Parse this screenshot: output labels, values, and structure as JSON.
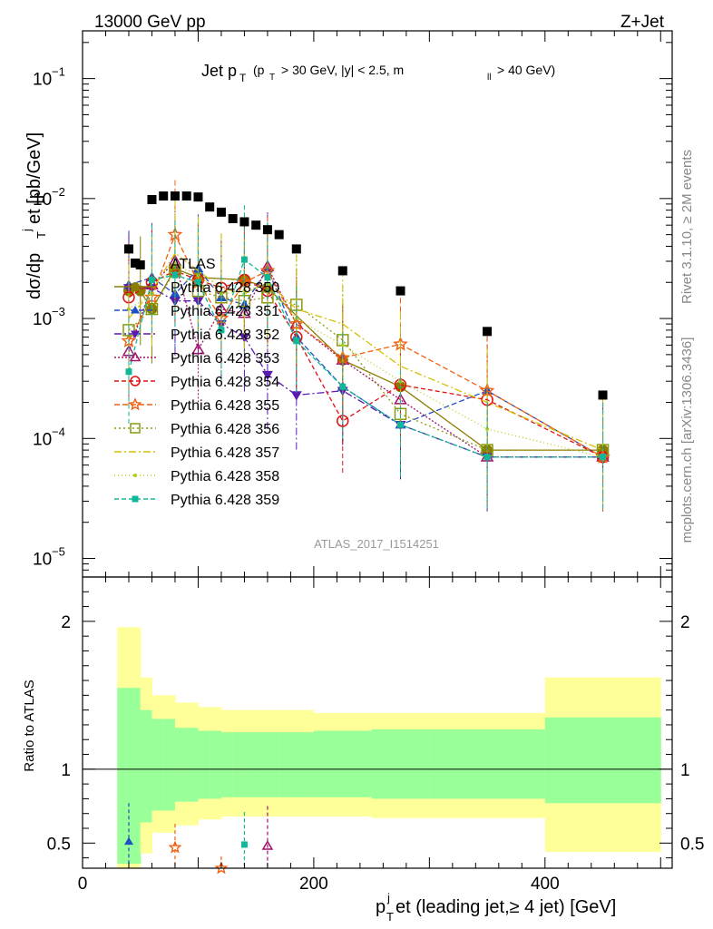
{
  "header": {
    "left": "13000 GeV pp",
    "right": "Z+Jet"
  },
  "side": {
    "rivet": "Rivet 3.1.10, ≥ 2M events",
    "mcplots": "mcplots.cern.ch [arXiv:1306.3436]"
  },
  "chart_data": {
    "type": "scatter",
    "title": "Jet p_T (p_T > 30 GeV, |y| < 2.5, m_ll > 40 GeV)",
    "title_main": "Jet p",
    "title_sub": "T",
    "title_cut_a": "(p",
    "title_cut_b": "T",
    "title_cut_c": "> 30 GeV, |y| < 2.5, m",
    "title_cut_d": "ll",
    "title_cut_e": "> 40 GeV)",
    "analysis_id": "ATLAS_2017_I1514251",
    "ylabel": "dσ/dp_T^j et [pb/GeV]",
    "ylabel_parts": [
      "dσ/dp",
      "T",
      "j",
      "et [pb/GeV]"
    ],
    "ratio_ylabel": "Ratio to ATLAS",
    "xlabel": "p_T^j et (leading jet,≥ 4 jet) [GeV]",
    "xlabel_parts": [
      "p",
      "T",
      "j",
      "et (leading jet,≥ 4 jet) [GeV]"
    ],
    "xlim": [
      0,
      510
    ],
    "ylim": [
      7e-06,
      0.25
    ],
    "yscale": "log",
    "ratio_ylim": [
      0.33,
      2.3
    ],
    "x_ticks": [
      "0",
      "200",
      "400"
    ],
    "y_ticks": [
      "10^-5",
      "10^-4",
      "10^-3",
      "10^-2",
      "10^-1"
    ],
    "ratio_ticks": [
      "0.5",
      "1",
      "2"
    ],
    "legend_position": "middle-left",
    "data": {
      "name": "ATLAS",
      "x": [
        40,
        50,
        60,
        70,
        80,
        90,
        100,
        110,
        120,
        130,
        140,
        150,
        160,
        170,
        185,
        225,
        275,
        350,
        450
      ],
      "values": [
        0.0038,
        0.0028,
        0.0098,
        0.0105,
        0.0105,
        0.0105,
        0.0103,
        0.0085,
        0.0077,
        0.0068,
        0.0064,
        0.006,
        0.0055,
        0.005,
        0.0038,
        0.0025,
        0.0017,
        0.00078,
        0.00023
      ]
    },
    "bins": {
      "edges": [
        30,
        40,
        50,
        60,
        70,
        80,
        90,
        100,
        110,
        120,
        130,
        140,
        150,
        160,
        170,
        200,
        250,
        300,
        400,
        500
      ],
      "green_lo": [
        0.36,
        0.36,
        0.64,
        0.72,
        0.72,
        0.78,
        0.78,
        0.8,
        0.8,
        0.81,
        0.81,
        0.81,
        0.81,
        0.81,
        0.81,
        0.81,
        0.8,
        0.8,
        0.77
      ],
      "green_hi": [
        1.55,
        1.55,
        1.4,
        1.34,
        1.34,
        1.28,
        1.28,
        1.26,
        1.26,
        1.25,
        1.25,
        1.25,
        1.25,
        1.25,
        1.25,
        1.26,
        1.27,
        1.27,
        1.35
      ],
      "yellow_lo": [
        0.33,
        0.33,
        0.43,
        0.57,
        0.57,
        0.62,
        0.62,
        0.66,
        0.66,
        0.68,
        0.68,
        0.68,
        0.68,
        0.68,
        0.68,
        0.68,
        0.67,
        0.67,
        0.44
      ],
      "yellow_hi": [
        1.96,
        1.96,
        1.62,
        1.5,
        1.5,
        1.45,
        1.45,
        1.42,
        1.42,
        1.4,
        1.4,
        1.4,
        1.4,
        1.4,
        1.4,
        1.38,
        1.38,
        1.38,
        1.62
      ]
    },
    "series": [
      {
        "name": "Pythia 6.428 350",
        "color": "#8b7d00",
        "marker": "circle-filled",
        "dash": "",
        "x": [
          40,
          50,
          60,
          80,
          100,
          140,
          160,
          225,
          275,
          350,
          450
        ],
        "values": [
          0.0017,
          0.0017,
          0.0012,
          0.0026,
          0.0022,
          0.0021,
          0.0018,
          0.00045,
          0.00027,
          8e-05,
          8e-05
        ]
      },
      {
        "name": "Pythia 6.428 351",
        "color": "#1f4fc4",
        "marker": "triangle-up-filled",
        "dash": "6,3",
        "x": [
          40,
          60,
          80,
          100,
          120,
          140,
          160,
          185,
          225,
          275,
          350,
          450
        ],
        "values": [
          0.0019,
          0.0022,
          0.0016,
          0.0026,
          0.0015,
          0.0013,
          0.0026,
          0.0007,
          0.00027,
          0.00013,
          0.00025,
          7e-05
        ]
      },
      {
        "name": "Pythia 6.428 352",
        "color": "#5a1ab0",
        "marker": "triangle-down-filled",
        "dash": "8,3,2,3",
        "x": [
          40,
          60,
          80,
          100,
          120,
          140,
          160,
          185,
          225,
          275,
          350,
          450
        ],
        "values": [
          0.0018,
          0.0018,
          0.0014,
          0.0014,
          0.0009,
          0.0007,
          0.00034,
          0.00023,
          0.00025,
          0.00013,
          7e-05,
          7e-05
        ]
      },
      {
        "name": "Pythia 6.428 353",
        "color": "#a0126e",
        "marker": "triangle-up-open",
        "dash": "2,2",
        "x": [
          40,
          60,
          80,
          100,
          120,
          140,
          160,
          185,
          225,
          275,
          350,
          450
        ],
        "values": [
          0.00053,
          0.0019,
          0.003,
          0.00055,
          0.0012,
          0.0011,
          0.0027,
          0.0009,
          0.00045,
          0.00021,
          7e-05,
          7e-05
        ]
      },
      {
        "name": "Pythia 6.428 354",
        "color": "#e01010",
        "marker": "circle-open",
        "dash": "5,3",
        "x": [
          40,
          60,
          80,
          100,
          120,
          140,
          160,
          185,
          225,
          275,
          350,
          450
        ],
        "values": [
          0.0015,
          0.002,
          0.0025,
          0.0021,
          0.0018,
          0.0021,
          0.0017,
          0.0007,
          0.00014,
          0.00028,
          0.00021,
          7e-05
        ]
      },
      {
        "name": "Pythia 6.428 355",
        "color": "#f06010",
        "marker": "star",
        "dash": "6,3",
        "x": [
          40,
          60,
          80,
          100,
          120,
          140,
          160,
          185,
          225,
          275,
          350,
          450
        ],
        "values": [
          0.00065,
          0.0015,
          0.005,
          0.002,
          0.001,
          0.002,
          0.0025,
          0.0009,
          0.00047,
          0.00061,
          0.00025,
          7e-05
        ]
      },
      {
        "name": "Pythia 6.428 356",
        "color": "#8a9a10",
        "marker": "square-open",
        "dash": "2,3",
        "x": [
          40,
          60,
          80,
          100,
          120,
          140,
          160,
          185,
          225,
          275,
          350,
          450
        ],
        "values": [
          0.0008,
          0.0012,
          0.0025,
          0.0017,
          0.0015,
          0.0014,
          0.0015,
          0.0013,
          0.00066,
          0.00016,
          8e-05,
          8e-05
        ]
      },
      {
        "name": "Pythia 6.428 357",
        "color": "#d4c000",
        "marker": "none",
        "dash": "8,3,2,3",
        "x": [
          40,
          60,
          80,
          100,
          120,
          140,
          160,
          185,
          225,
          275,
          350,
          450
        ],
        "values": [
          0.001,
          0.0017,
          0.0035,
          0.0025,
          0.0018,
          0.0016,
          0.002,
          0.0012,
          0.0009,
          0.0004,
          0.0002,
          8e-05
        ]
      },
      {
        "name": "Pythia 6.428 358",
        "color": "#b6cc1a",
        "marker": "dot",
        "dash": "1,3",
        "x": [
          40,
          60,
          80,
          100,
          120,
          140,
          160,
          185,
          225,
          275,
          350,
          450
        ],
        "values": [
          0.0012,
          0.0016,
          0.0028,
          0.0023,
          0.0016,
          0.0017,
          0.0019,
          0.001,
          0.0006,
          0.0003,
          0.00012,
          7e-05
        ]
      },
      {
        "name": "Pythia 6.428 359",
        "color": "#10b89a",
        "marker": "square-filled-small",
        "dash": "5,3",
        "x": [
          40,
          60,
          80,
          100,
          120,
          140,
          160,
          185,
          225,
          275,
          350,
          450
        ],
        "values": [
          0.00036,
          0.0021,
          0.0023,
          0.002,
          0.0008,
          0.0031,
          0.0022,
          0.00065,
          0.00027,
          0.00013,
          7e-05,
          7e-05
        ]
      }
    ],
    "ratio_series": [
      {
        "color": "#1f4fc4",
        "marker": "triangle-up-filled",
        "x": [
          40
        ],
        "values": [
          0.51
        ],
        "err_hi": [
          0.77
        ]
      },
      {
        "color": "#f06010",
        "marker": "star",
        "x": [
          80,
          120
        ],
        "values": [
          0.47,
          0.33
        ],
        "err_hi": [
          0.63,
          0.41
        ]
      },
      {
        "color": "#10b89a",
        "marker": "square-filled-small",
        "x": [
          140
        ],
        "values": [
          0.49
        ],
        "err_hi": [
          0.71
        ]
      },
      {
        "color": "#a0126e",
        "marker": "triangle-up-open",
        "x": [
          160
        ],
        "values": [
          0.48
        ],
        "err_hi": [
          0.75
        ]
      }
    ]
  }
}
